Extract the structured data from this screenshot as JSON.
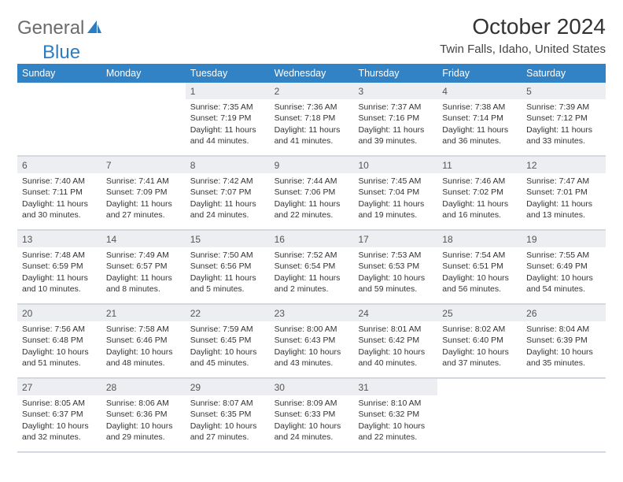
{
  "brand": {
    "part1": "General",
    "part2": "Blue"
  },
  "title": "October 2024",
  "location": "Twin Falls, Idaho, United States",
  "colors": {
    "header_bg": "#3282c6",
    "header_text": "#ffffff",
    "daynum_bg": "#eceef1",
    "row_border": "#d4d9e0",
    "text": "#333333",
    "brand_gray": "#6b6b6b",
    "brand_blue": "#2e7cc0"
  },
  "day_headers": [
    "Sunday",
    "Monday",
    "Tuesday",
    "Wednesday",
    "Thursday",
    "Friday",
    "Saturday"
  ],
  "weeks": [
    [
      null,
      null,
      {
        "n": "1",
        "sunrise": "Sunrise: 7:35 AM",
        "sunset": "Sunset: 7:19 PM",
        "daylight": "Daylight: 11 hours and 44 minutes."
      },
      {
        "n": "2",
        "sunrise": "Sunrise: 7:36 AM",
        "sunset": "Sunset: 7:18 PM",
        "daylight": "Daylight: 11 hours and 41 minutes."
      },
      {
        "n": "3",
        "sunrise": "Sunrise: 7:37 AM",
        "sunset": "Sunset: 7:16 PM",
        "daylight": "Daylight: 11 hours and 39 minutes."
      },
      {
        "n": "4",
        "sunrise": "Sunrise: 7:38 AM",
        "sunset": "Sunset: 7:14 PM",
        "daylight": "Daylight: 11 hours and 36 minutes."
      },
      {
        "n": "5",
        "sunrise": "Sunrise: 7:39 AM",
        "sunset": "Sunset: 7:12 PM",
        "daylight": "Daylight: 11 hours and 33 minutes."
      }
    ],
    [
      {
        "n": "6",
        "sunrise": "Sunrise: 7:40 AM",
        "sunset": "Sunset: 7:11 PM",
        "daylight": "Daylight: 11 hours and 30 minutes."
      },
      {
        "n": "7",
        "sunrise": "Sunrise: 7:41 AM",
        "sunset": "Sunset: 7:09 PM",
        "daylight": "Daylight: 11 hours and 27 minutes."
      },
      {
        "n": "8",
        "sunrise": "Sunrise: 7:42 AM",
        "sunset": "Sunset: 7:07 PM",
        "daylight": "Daylight: 11 hours and 24 minutes."
      },
      {
        "n": "9",
        "sunrise": "Sunrise: 7:44 AM",
        "sunset": "Sunset: 7:06 PM",
        "daylight": "Daylight: 11 hours and 22 minutes."
      },
      {
        "n": "10",
        "sunrise": "Sunrise: 7:45 AM",
        "sunset": "Sunset: 7:04 PM",
        "daylight": "Daylight: 11 hours and 19 minutes."
      },
      {
        "n": "11",
        "sunrise": "Sunrise: 7:46 AM",
        "sunset": "Sunset: 7:02 PM",
        "daylight": "Daylight: 11 hours and 16 minutes."
      },
      {
        "n": "12",
        "sunrise": "Sunrise: 7:47 AM",
        "sunset": "Sunset: 7:01 PM",
        "daylight": "Daylight: 11 hours and 13 minutes."
      }
    ],
    [
      {
        "n": "13",
        "sunrise": "Sunrise: 7:48 AM",
        "sunset": "Sunset: 6:59 PM",
        "daylight": "Daylight: 11 hours and 10 minutes."
      },
      {
        "n": "14",
        "sunrise": "Sunrise: 7:49 AM",
        "sunset": "Sunset: 6:57 PM",
        "daylight": "Daylight: 11 hours and 8 minutes."
      },
      {
        "n": "15",
        "sunrise": "Sunrise: 7:50 AM",
        "sunset": "Sunset: 6:56 PM",
        "daylight": "Daylight: 11 hours and 5 minutes."
      },
      {
        "n": "16",
        "sunrise": "Sunrise: 7:52 AM",
        "sunset": "Sunset: 6:54 PM",
        "daylight": "Daylight: 11 hours and 2 minutes."
      },
      {
        "n": "17",
        "sunrise": "Sunrise: 7:53 AM",
        "sunset": "Sunset: 6:53 PM",
        "daylight": "Daylight: 10 hours and 59 minutes."
      },
      {
        "n": "18",
        "sunrise": "Sunrise: 7:54 AM",
        "sunset": "Sunset: 6:51 PM",
        "daylight": "Daylight: 10 hours and 56 minutes."
      },
      {
        "n": "19",
        "sunrise": "Sunrise: 7:55 AM",
        "sunset": "Sunset: 6:49 PM",
        "daylight": "Daylight: 10 hours and 54 minutes."
      }
    ],
    [
      {
        "n": "20",
        "sunrise": "Sunrise: 7:56 AM",
        "sunset": "Sunset: 6:48 PM",
        "daylight": "Daylight: 10 hours and 51 minutes."
      },
      {
        "n": "21",
        "sunrise": "Sunrise: 7:58 AM",
        "sunset": "Sunset: 6:46 PM",
        "daylight": "Daylight: 10 hours and 48 minutes."
      },
      {
        "n": "22",
        "sunrise": "Sunrise: 7:59 AM",
        "sunset": "Sunset: 6:45 PM",
        "daylight": "Daylight: 10 hours and 45 minutes."
      },
      {
        "n": "23",
        "sunrise": "Sunrise: 8:00 AM",
        "sunset": "Sunset: 6:43 PM",
        "daylight": "Daylight: 10 hours and 43 minutes."
      },
      {
        "n": "24",
        "sunrise": "Sunrise: 8:01 AM",
        "sunset": "Sunset: 6:42 PM",
        "daylight": "Daylight: 10 hours and 40 minutes."
      },
      {
        "n": "25",
        "sunrise": "Sunrise: 8:02 AM",
        "sunset": "Sunset: 6:40 PM",
        "daylight": "Daylight: 10 hours and 37 minutes."
      },
      {
        "n": "26",
        "sunrise": "Sunrise: 8:04 AM",
        "sunset": "Sunset: 6:39 PM",
        "daylight": "Daylight: 10 hours and 35 minutes."
      }
    ],
    [
      {
        "n": "27",
        "sunrise": "Sunrise: 8:05 AM",
        "sunset": "Sunset: 6:37 PM",
        "daylight": "Daylight: 10 hours and 32 minutes."
      },
      {
        "n": "28",
        "sunrise": "Sunrise: 8:06 AM",
        "sunset": "Sunset: 6:36 PM",
        "daylight": "Daylight: 10 hours and 29 minutes."
      },
      {
        "n": "29",
        "sunrise": "Sunrise: 8:07 AM",
        "sunset": "Sunset: 6:35 PM",
        "daylight": "Daylight: 10 hours and 27 minutes."
      },
      {
        "n": "30",
        "sunrise": "Sunrise: 8:09 AM",
        "sunset": "Sunset: 6:33 PM",
        "daylight": "Daylight: 10 hours and 24 minutes."
      },
      {
        "n": "31",
        "sunrise": "Sunrise: 8:10 AM",
        "sunset": "Sunset: 6:32 PM",
        "daylight": "Daylight: 10 hours and 22 minutes."
      },
      null,
      null
    ]
  ]
}
